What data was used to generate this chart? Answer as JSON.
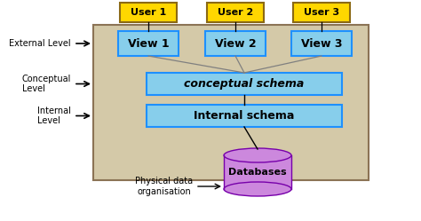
{
  "bg_color": "#ffffff",
  "sandbox_color": "#d4c9a8",
  "sandbox_edge": "#8B7355",
  "user_box_color": "#FFD700",
  "user_box_edge": "#8B6914",
  "view_box_color": "#87CEEB",
  "view_box_edge": "#1E90FF",
  "schema_box_color": "#87CEEB",
  "schema_box_edge": "#1E90FF",
  "db_color": "#CC88DD",
  "db_edge": "#7700AA",
  "users": [
    "User 1",
    "User 2",
    "User 3"
  ],
  "views": [
    "View 1",
    "View 2",
    "View 3"
  ],
  "conceptual_label": "conceptual schema",
  "internal_label": "Internal schema",
  "db_label": "Databases",
  "phys_label": "Physical data\norganisation"
}
